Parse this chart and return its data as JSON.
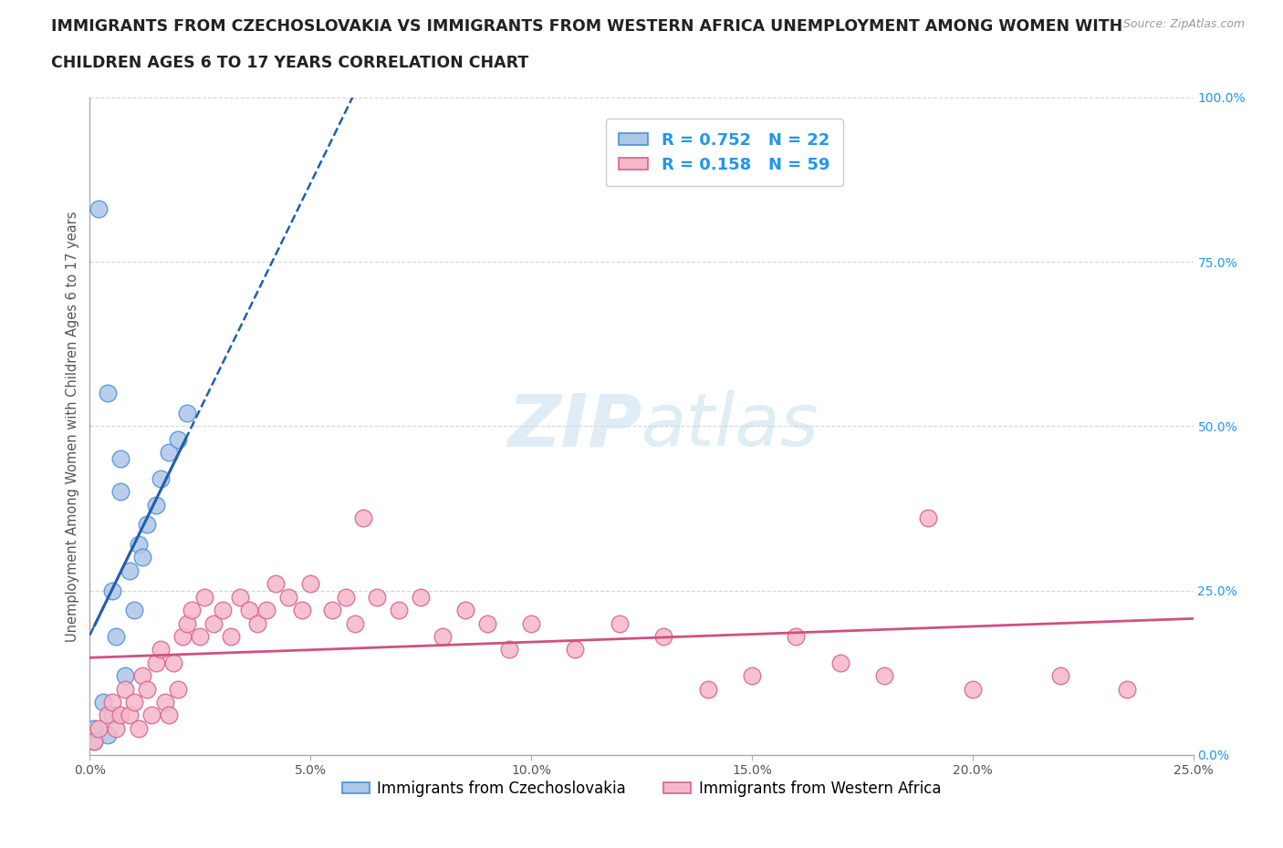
{
  "title_line1": "IMMIGRANTS FROM CZECHOSLOVAKIA VS IMMIGRANTS FROM WESTERN AFRICA UNEMPLOYMENT AMONG WOMEN WITH",
  "title_line2": "CHILDREN AGES 6 TO 17 YEARS CORRELATION CHART",
  "source": "Source: ZipAtlas.com",
  "ylabel": "Unemployment Among Women with Children Ages 6 to 17 years",
  "xlim": [
    0.0,
    0.25
  ],
  "ylim": [
    0.0,
    1.0
  ],
  "blue_scatter_color": "#aec6e8",
  "blue_scatter_edge": "#4a90d9",
  "pink_scatter_color": "#f5b8c8",
  "pink_scatter_edge": "#d96090",
  "blue_line_color": "#2060b0",
  "pink_line_color": "#d05080",
  "R_czech": 0.752,
  "N_czech": 22,
  "R_wafrica": 0.158,
  "N_wafrica": 59,
  "legend_label_czech": "Immigrants from Czechoslovakia",
  "legend_label_wafrica": "Immigrants from Western Africa",
  "legend_R_color": "#2196F3",
  "watermark_color": "#c8dff0",
  "background_color": "#ffffff",
  "czech_x": [
    0.001,
    0.001,
    0.002,
    0.003,
    0.004,
    0.004,
    0.005,
    0.005,
    0.006,
    0.007,
    0.007,
    0.008,
    0.009,
    0.01,
    0.011,
    0.012,
    0.013,
    0.015,
    0.016,
    0.018,
    0.02,
    0.022
  ],
  "czech_y": [
    0.02,
    0.04,
    0.83,
    0.08,
    0.03,
    0.55,
    0.06,
    0.25,
    0.18,
    0.4,
    0.45,
    0.12,
    0.28,
    0.22,
    0.32,
    0.3,
    0.35,
    0.38,
    0.42,
    0.46,
    0.48,
    0.52
  ],
  "wafrica_x": [
    0.001,
    0.002,
    0.004,
    0.005,
    0.006,
    0.007,
    0.008,
    0.009,
    0.01,
    0.011,
    0.012,
    0.013,
    0.014,
    0.015,
    0.016,
    0.017,
    0.018,
    0.019,
    0.02,
    0.021,
    0.022,
    0.023,
    0.025,
    0.026,
    0.028,
    0.03,
    0.032,
    0.034,
    0.036,
    0.038,
    0.04,
    0.042,
    0.045,
    0.048,
    0.05,
    0.055,
    0.058,
    0.06,
    0.062,
    0.065,
    0.07,
    0.075,
    0.08,
    0.085,
    0.09,
    0.095,
    0.1,
    0.11,
    0.12,
    0.13,
    0.14,
    0.15,
    0.16,
    0.17,
    0.18,
    0.19,
    0.2,
    0.22,
    0.235
  ],
  "wafrica_y": [
    0.02,
    0.04,
    0.06,
    0.08,
    0.04,
    0.06,
    0.1,
    0.06,
    0.08,
    0.04,
    0.12,
    0.1,
    0.06,
    0.14,
    0.16,
    0.08,
    0.06,
    0.14,
    0.1,
    0.18,
    0.2,
    0.22,
    0.18,
    0.24,
    0.2,
    0.22,
    0.18,
    0.24,
    0.22,
    0.2,
    0.22,
    0.26,
    0.24,
    0.22,
    0.26,
    0.22,
    0.24,
    0.2,
    0.36,
    0.24,
    0.22,
    0.24,
    0.18,
    0.22,
    0.2,
    0.16,
    0.2,
    0.16,
    0.2,
    0.18,
    0.1,
    0.12,
    0.18,
    0.14,
    0.12,
    0.36,
    0.1,
    0.12,
    0.1
  ]
}
